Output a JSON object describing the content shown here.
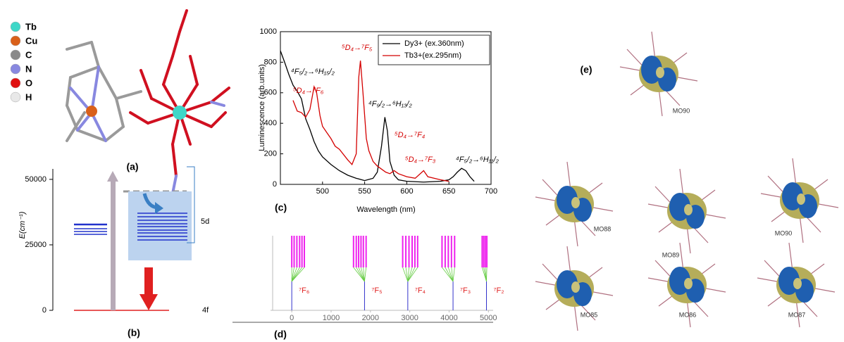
{
  "panel_a": {
    "legend": [
      "Tb",
      "Cu",
      "C",
      "N",
      "O",
      "H"
    ],
    "caption": "(a)"
  },
  "chart_data": [
    {
      "type": "energy-levels",
      "ylabel": "E(cm⁻¹)",
      "ylim": [
        0,
        54000
      ],
      "yticks": [
        0,
        25000,
        50000
      ],
      "annotations": [
        "5d",
        "4f"
      ],
      "caption": "(b)"
    },
    {
      "type": "line",
      "ylabel": "Luminescence (arb.units)",
      "xlabel": "Wavelength (nm)",
      "xlim": [
        450,
        700
      ],
      "xticks": [
        500,
        550,
        600,
        650,
        700
      ],
      "ylim": [
        0,
        1000
      ],
      "yticks": [
        0,
        200,
        400,
        600,
        800,
        1000
      ],
      "legend": "top-right",
      "series": [
        {
          "name": "Dy3+ (ex.360nm)",
          "color": "#000000",
          "x": [
            450,
            455,
            460,
            465,
            470,
            475,
            480,
            485,
            490,
            495,
            500,
            510,
            520,
            530,
            540,
            550,
            560,
            565,
            570,
            574,
            577,
            580,
            585,
            590,
            600,
            620,
            640,
            650,
            655,
            660,
            665,
            670,
            675,
            680
          ],
          "values": [
            875,
            800,
            720,
            650,
            610,
            560,
            430,
            360,
            280,
            220,
            180,
            130,
            90,
            60,
            40,
            25,
            40,
            80,
            250,
            440,
            350,
            150,
            60,
            30,
            20,
            15,
            20,
            30,
            50,
            80,
            105,
            90,
            50,
            20
          ]
        },
        {
          "name": "Tb3+(ex.295nm)",
          "color": "#d40000",
          "x": [
            465,
            470,
            475,
            480,
            485,
            490,
            493,
            497,
            500,
            505,
            510,
            515,
            520,
            530,
            535,
            540,
            543,
            545,
            548,
            552,
            555,
            560,
            565,
            570,
            575,
            580,
            585,
            590,
            600,
            610,
            620,
            625,
            640,
            650
          ],
          "values": [
            550,
            480,
            470,
            440,
            490,
            640,
            600,
            450,
            380,
            340,
            300,
            250,
            230,
            160,
            130,
            200,
            700,
            810,
            600,
            300,
            220,
            150,
            120,
            100,
            80,
            70,
            90,
            70,
            50,
            40,
            90,
            50,
            30,
            20
          ]
        }
      ],
      "annotations": [
        {
          "text": "⁴F₅/₂→⁶H₁₅/₂",
          "color": "#000000"
        },
        {
          "text": "⁵D₄→⁷F₅",
          "color": "#d40000"
        },
        {
          "text": "⁵D₄→⁷F₆",
          "color": "#d40000"
        },
        {
          "text": "⁴F₉/₂→⁶H₁₃/₂",
          "color": "#000000"
        },
        {
          "text": "⁵D₄→⁷F₄",
          "color": "#d40000"
        },
        {
          "text": "⁵D₄→⁷F₃",
          "color": "#d40000"
        },
        {
          "text": "⁴F₅/₂→⁶H₁₁/₂",
          "color": "#000000"
        }
      ],
      "caption": "(c)"
    },
    {
      "type": "levels",
      "xlim": [
        -540,
        5120
      ],
      "xticks": [
        0,
        1000,
        2000,
        3000,
        4000,
        5000
      ],
      "groups": [
        {
          "label": "⁷F₆",
          "center": 0,
          "levels": [
            0,
            60,
            130,
            200,
            260,
            320
          ]
        },
        {
          "label": "⁷F₅",
          "center": 1850,
          "levels": [
            1570,
            1640,
            1700,
            1760,
            1820,
            1890
          ]
        },
        {
          "label": "⁷F₄",
          "center": 2950,
          "levels": [
            2820,
            2900,
            2980,
            3060,
            3130,
            3200
          ]
        },
        {
          "label": "⁷F₃",
          "center": 4100,
          "levels": [
            3820,
            3900,
            3980,
            4060,
            4140
          ]
        },
        {
          "label": "⁷F₂",
          "center": 4950,
          "levels": [
            4840,
            4880,
            4920,
            4960
          ]
        }
      ],
      "caption": "(d)"
    }
  ],
  "panel_e": {
    "labels": [
      "MO90",
      "MO88",
      "MO89",
      "MO90",
      "MO85",
      "MO86",
      "MO87"
    ],
    "caption": "(e)"
  }
}
